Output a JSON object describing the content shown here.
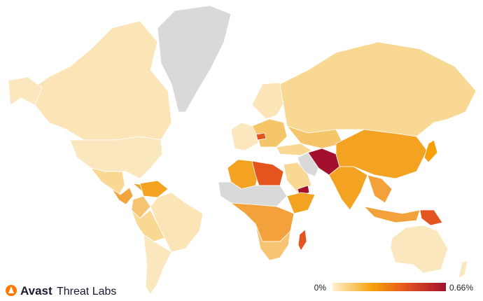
{
  "brand": {
    "name": "Avast",
    "product": "Threat Labs"
  },
  "legend": {
    "min": "0%",
    "max": "0.66%"
  }
}
